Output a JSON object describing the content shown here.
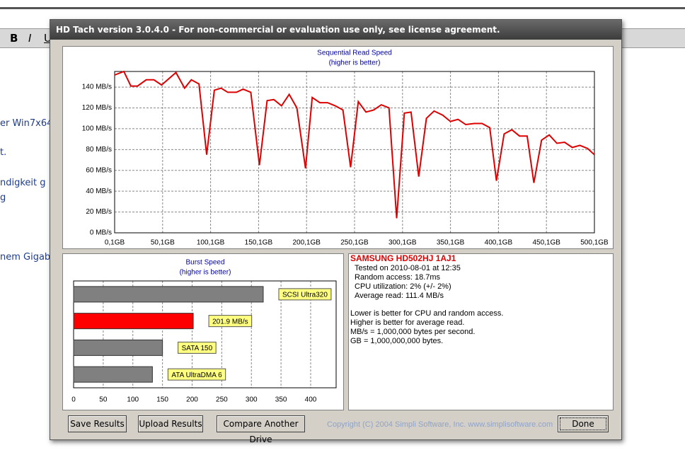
{
  "background": {
    "toolbar": [
      "B",
      "I",
      "U"
    ],
    "lines": [
      "er Win7x64",
      "t.",
      "ndigkeit g",
      "g",
      "nem Gigab"
    ]
  },
  "window": {
    "title": "HD Tach version 3.0.4.0  - For non-commercial or evaluation use only, see license agreement."
  },
  "chart_data": [
    {
      "type": "line",
      "title": "Sequential Read Speed",
      "subtitle": "(higher is better)",
      "color": "#dd0000",
      "grid": true,
      "x": [
        0.1,
        9.7,
        17,
        24,
        33,
        41,
        49,
        64,
        73,
        80,
        88,
        96,
        104,
        111,
        118,
        127,
        134,
        142,
        151,
        159,
        166,
        174,
        182,
        190,
        199,
        206,
        214,
        222,
        230,
        238,
        246,
        254,
        262,
        270,
        278,
        286,
        294,
        302,
        309,
        317,
        325,
        333,
        342,
        350,
        358,
        366,
        375,
        383,
        391,
        398,
        406,
        414,
        422,
        430,
        437,
        445,
        453,
        461,
        469,
        477,
        485,
        493,
        500.1
      ],
      "values": [
        151.6,
        155,
        141,
        141,
        147,
        147,
        142,
        154,
        139,
        147,
        143,
        75,
        137,
        139,
        135,
        135,
        138,
        135,
        65,
        127,
        128,
        122,
        133,
        120,
        62,
        130,
        125,
        125,
        122,
        118,
        63,
        126,
        116,
        118,
        123,
        120,
        14,
        115,
        116,
        54,
        110,
        117,
        113,
        107,
        109,
        104,
        105,
        105,
        101,
        50,
        95,
        99,
        93,
        93,
        48,
        89,
        94,
        86,
        87,
        82,
        84,
        81,
        75
      ],
      "xlim": [
        0.1,
        500.1
      ],
      "xticks": [
        {
          "value": 0.1,
          "label": "0,1GB"
        },
        {
          "value": 50.1,
          "label": "50,1GB"
        },
        {
          "value": 100.1,
          "label": "100,1GB"
        },
        {
          "value": 150.1,
          "label": "150,1GB"
        },
        {
          "value": 200.1,
          "label": "200,1GB"
        },
        {
          "value": 250.1,
          "label": "250,1GB"
        },
        {
          "value": 300.1,
          "label": "300,1GB"
        },
        {
          "value": 350.1,
          "label": "350,1GB"
        },
        {
          "value": 400.1,
          "label": "400,1GB"
        },
        {
          "value": 450.1,
          "label": "450,1GB"
        },
        {
          "value": 500.1,
          "label": "500,1GB"
        }
      ],
      "ylim": [
        0,
        155
      ],
      "yticks": [
        {
          "value": 0,
          "label": "0 MB/s"
        },
        {
          "value": 20,
          "label": "20 MB/s"
        },
        {
          "value": 40,
          "label": "40 MB/s"
        },
        {
          "value": 60,
          "label": "60 MB/s"
        },
        {
          "value": 80,
          "label": "80 MB/s"
        },
        {
          "value": 100,
          "label": "100 MB/s"
        },
        {
          "value": 120,
          "label": "120 MB/s"
        },
        {
          "value": 140,
          "label": "140 MB/s"
        }
      ]
    },
    {
      "type": "hbar",
      "title": "Burst Speed",
      "subtitle": "(higher is better)",
      "values": [
        320,
        201.9,
        150,
        133
      ],
      "bar_labels": [
        "SCSI Ultra320",
        "201.9 MB/s",
        "SATA 150",
        "ATA UltraDMA 6"
      ],
      "colors": [
        "#808080",
        "#ff0000",
        "#808080",
        "#808080"
      ],
      "xlim": [
        0,
        443
      ],
      "xticks": [
        0,
        50,
        100,
        150,
        200,
        250,
        300,
        350,
        400
      ]
    }
  ],
  "info": {
    "drive": "SAMSUNG HD502HJ 1AJ1",
    "details": [
      "Tested on 2010-08-01 at 12:35",
      "Random access: 18.7ms",
      "CPU utilization: 2% (+/- 2%)",
      "Average read: 111.4 MB/s"
    ],
    "notes": [
      "Lower is better for CPU and random access.",
      "Higher is better for average read.",
      "MB/s = 1,000,000 bytes per second.",
      "GB = 1,000,000,000 bytes."
    ]
  },
  "buttons": [
    "Save Results",
    "Upload Results",
    "Compare Another Drive",
    "Done"
  ],
  "copyright": "Copyright (C) 2004 Simpli Software, Inc. www.simplisoftware.com"
}
